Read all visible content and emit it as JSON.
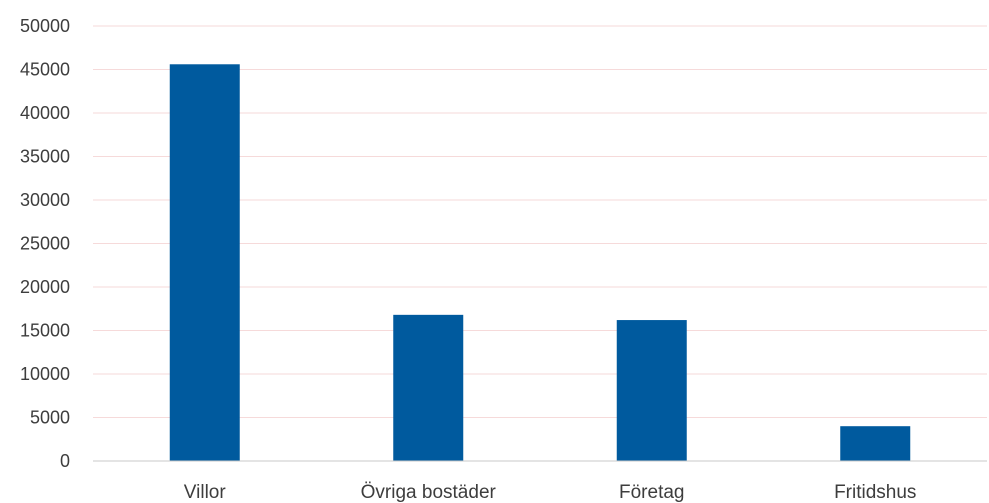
{
  "chart_data": {
    "type": "bar",
    "title": "",
    "xlabel": "",
    "ylabel": "",
    "categories": [
      "Villor",
      "Övriga bostäder",
      "Företag",
      "Fritidshus"
    ],
    "values": [
      45600,
      16800,
      16200,
      4000
    ],
    "ylim": [
      0,
      50000
    ],
    "yticks": [
      0,
      5000,
      10000,
      15000,
      20000,
      25000,
      30000,
      35000,
      40000,
      45000,
      50000
    ],
    "ytick_labels": [
      "0",
      "5000",
      "10000",
      "15000",
      "20000",
      "25000",
      "30000",
      "35000",
      "40000",
      "45000",
      "50000"
    ],
    "grid": true,
    "legend": "none",
    "colors": {
      "bar": "#005a9e",
      "grid": "#f6dada",
      "axis": "#c8c8c8",
      "text": "#3d3d3d"
    }
  }
}
